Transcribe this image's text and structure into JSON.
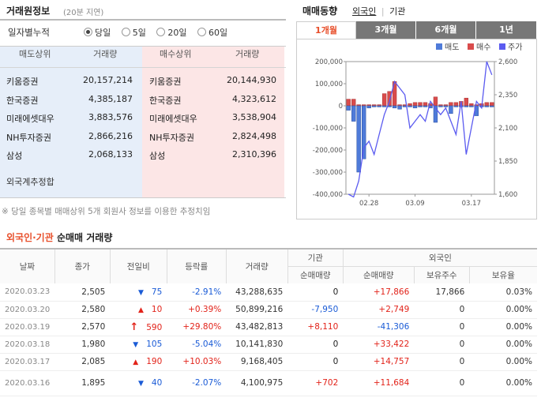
{
  "header": {
    "title": "거래원정보",
    "delay_note": "(20분 지연)",
    "right_title": "매매동향",
    "right_links": [
      "외국인",
      "기관"
    ]
  },
  "period_filter": {
    "label": "일자별누적",
    "options": [
      "당일",
      "5일",
      "20일",
      "60일"
    ],
    "selected": "당일"
  },
  "broker_table": {
    "headers": [
      "매도상위",
      "거래량",
      "매수상위",
      "거래량"
    ],
    "rows": [
      {
        "sell": "키움증권",
        "sell_vol": "20,157,214",
        "buy": "키움증권",
        "buy_vol": "20,144,930"
      },
      {
        "sell": "한국증권",
        "sell_vol": "4,385,187",
        "buy": "한국증권",
        "buy_vol": "4,323,612"
      },
      {
        "sell": "미래에셋대우",
        "sell_vol": "3,883,576",
        "buy": "미래에셋대우",
        "buy_vol": "3,538,904"
      },
      {
        "sell": "NH투자증권",
        "sell_vol": "2,866,216",
        "buy": "NH투자증권",
        "buy_vol": "2,824,498"
      },
      {
        "sell": "삼성",
        "sell_vol": "2,068,133",
        "buy": "삼성",
        "buy_vol": "2,310,396"
      }
    ],
    "foreign_total_label": "외국계추정합",
    "footnote": "※ 당일 종목별 매매상위 5개 회원사 정보를 이용한 추정치임"
  },
  "chart_tabs": [
    "1개월",
    "3개월",
    "6개월",
    "1년"
  ],
  "chart_tab_selected": "1개월",
  "chart_data": {
    "type": "bar",
    "legend": [
      "매도",
      "매수",
      "주가"
    ],
    "x_tick_labels": [
      "02.28",
      "03.09",
      "03.17"
    ],
    "y_left_ticks": [
      "200,000",
      "100,000",
      "0",
      "-100,000",
      "-200,000",
      "-300,000",
      "-400,000"
    ],
    "y_right_ticks": [
      "2,600",
      "2,350",
      "2,100",
      "1,850",
      "1,600"
    ],
    "ylim_left": [
      -400000,
      200000
    ],
    "ylim_right": [
      1600,
      2600
    ],
    "buy_values": [
      30000,
      30000,
      5000,
      5000,
      5000,
      5000,
      5000,
      55000,
      65000,
      110000,
      5000,
      5000,
      10000,
      15000,
      15000,
      15000,
      10000,
      40000,
      5000,
      5000,
      15000,
      15000,
      20000,
      35000,
      10000,
      5000,
      10000,
      15000,
      15000
    ],
    "sell_values": [
      -20000,
      -70000,
      -300000,
      -240000,
      -10000,
      -5000,
      -5000,
      -5000,
      -5000,
      -10000,
      -15000,
      -5000,
      -5000,
      -10000,
      -5000,
      -5000,
      -10000,
      -75000,
      -5000,
      -5000,
      -35000,
      -5000,
      -5000,
      -5000,
      -5000,
      -45000,
      -5000,
      -5000,
      -5000
    ],
    "price_values": [
      1600,
      1580,
      1700,
      1950,
      2000,
      1900,
      2050,
      2200,
      2300,
      2450,
      2400,
      2350,
      2100,
      2150,
      2200,
      2150,
      2300,
      2250,
      2200,
      2250,
      2150,
      2050,
      2300,
      1900,
      2100,
      2300,
      2250,
      2600,
      2500
    ]
  },
  "trade_section": {
    "title_colored": "외국인·기관",
    "title_rest": "순매매 거래량",
    "group_headers": [
      "기관",
      "외국인"
    ],
    "headers": [
      "날짜",
      "종가",
      "전일비",
      "등락률",
      "거래량",
      "순매매량",
      "순매매량",
      "보유주수",
      "보유율"
    ],
    "rows": [
      {
        "date": "2020.03.23",
        "close": "2,505",
        "dir": "down",
        "change": "75",
        "rate": "-2.91%",
        "volume": "43,288,635",
        "inst": "0",
        "foreign": "+17,866",
        "hold": "17,866",
        "hold_rate": "0.03%"
      },
      {
        "date": "2020.03.20",
        "close": "2,580",
        "dir": "up",
        "change": "10",
        "rate": "+0.39%",
        "volume": "50,899,216",
        "inst": "-7,950",
        "foreign": "+2,749",
        "hold": "0",
        "hold_rate": "0.00%"
      },
      {
        "date": "2020.03.19",
        "close": "2,570",
        "dir": "upper",
        "change": "590",
        "rate": "+29.80%",
        "volume": "43,482,813",
        "inst": "+8,110",
        "foreign": "-41,306",
        "hold": "0",
        "hold_rate": "0.00%"
      },
      {
        "date": "2020.03.18",
        "close": "1,980",
        "dir": "down",
        "change": "105",
        "rate": "-5.04%",
        "volume": "10,141,830",
        "inst": "0",
        "foreign": "+33,422",
        "hold": "0",
        "hold_rate": "0.00%"
      },
      {
        "date": "2020.03.17",
        "close": "2,085",
        "dir": "up",
        "change": "190",
        "rate": "+10.03%",
        "volume": "9,168,405",
        "inst": "0",
        "foreign": "+14,757",
        "hold": "0",
        "hold_rate": "0.00%"
      },
      {
        "date": "2020.03.16",
        "close": "1,895",
        "dir": "down",
        "change": "40",
        "rate": "-2.07%",
        "volume": "4,100,975",
        "inst": "+702",
        "foreign": "+11,684",
        "hold": "0",
        "hold_rate": "0.00%"
      }
    ]
  },
  "colors": {
    "up": "#e2231a",
    "down": "#1a5bd6",
    "accent": "#e8502c",
    "buy_bar": "#d94c4c",
    "sell_bar": "#4f7bd9",
    "price_line": "#5b5bf0"
  }
}
